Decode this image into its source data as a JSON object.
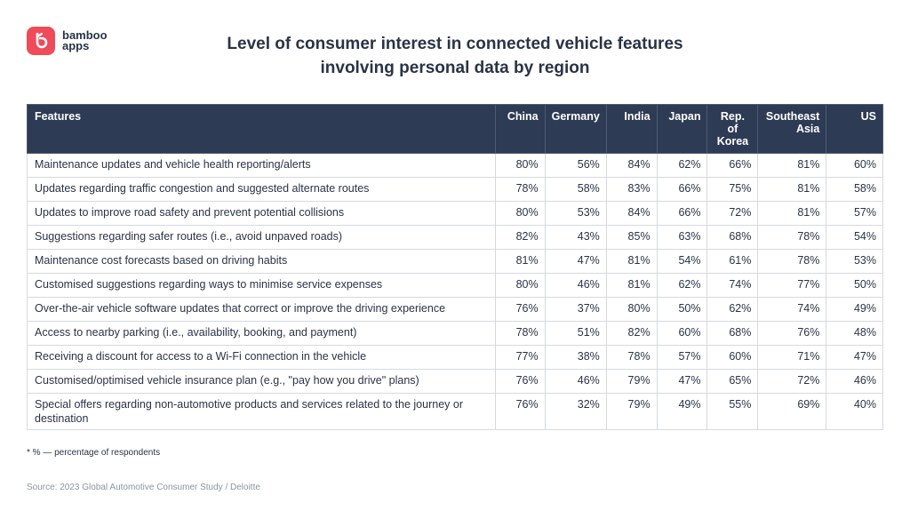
{
  "brand": {
    "name_line1": "bamboo",
    "name_line2": "apps",
    "accent": "#ef4b5a"
  },
  "title_line1": "Level of consumer interest in connected vehicle features",
  "title_line2": "involving personal data by region",
  "chart_data": {
    "type": "table",
    "title": "Level of consumer interest in connected vehicle features involving personal data by region",
    "columns": [
      "Features",
      "China",
      "Germany",
      "India",
      "Japan",
      "Rep. of Korea",
      "Southeast Asia",
      "US"
    ],
    "header_labels": {
      "features": "Features",
      "china": "China",
      "germany": "Germany",
      "india": "India",
      "japan": "Japan",
      "korea_l1": "Rep. of",
      "korea_l2": "Korea",
      "sea_l1": "Southeast",
      "sea_l2": "Asia",
      "us": "US"
    },
    "rows": [
      {
        "feature": "Maintenance updates and vehicle health reporting/alerts",
        "values": [
          "80%",
          "56%",
          "84%",
          "62%",
          "66%",
          "81%",
          "60%"
        ]
      },
      {
        "feature": "Updates regarding traffic congestion and suggested alternate routes",
        "values": [
          "78%",
          "58%",
          "83%",
          "66%",
          "75%",
          "81%",
          "58%"
        ]
      },
      {
        "feature": "Updates to improve road safety and prevent potential collisions",
        "values": [
          "80%",
          "53%",
          "84%",
          "66%",
          "72%",
          "81%",
          "57%"
        ]
      },
      {
        "feature": "Suggestions regarding safer routes (i.e., avoid unpaved roads)",
        "values": [
          "82%",
          "43%",
          "85%",
          "63%",
          "68%",
          "78%",
          "54%"
        ]
      },
      {
        "feature": "Maintenance cost forecasts based on driving habits",
        "values": [
          "81%",
          "47%",
          "81%",
          "54%",
          "61%",
          "78%",
          "53%"
        ]
      },
      {
        "feature": "Customised suggestions regarding ways to minimise service expenses",
        "values": [
          "80%",
          "46%",
          "81%",
          "62%",
          "74%",
          "77%",
          "50%"
        ]
      },
      {
        "feature": "Over-the-air vehicle software updates that correct or improve the driving experience",
        "values": [
          "76%",
          "37%",
          "80%",
          "50%",
          "62%",
          "74%",
          "49%"
        ]
      },
      {
        "feature": "Access to nearby parking (i.e., availability, booking, and payment)",
        "values": [
          "78%",
          "51%",
          "82%",
          "60%",
          "68%",
          "76%",
          "48%"
        ]
      },
      {
        "feature": "Receiving a discount for access to a Wi-Fi connection in the vehicle",
        "values": [
          "77%",
          "38%",
          "78%",
          "57%",
          "60%",
          "71%",
          "47%"
        ]
      },
      {
        "feature": "Customised/optimised vehicle insurance plan (e.g., \"pay how you drive\" plans)",
        "values": [
          "76%",
          "46%",
          "79%",
          "47%",
          "65%",
          "72%",
          "46%"
        ]
      },
      {
        "feature": "Special offers regarding non-automotive products and services related to the journey or destination",
        "values": [
          "76%",
          "32%",
          "79%",
          "49%",
          "55%",
          "69%",
          "40%"
        ]
      }
    ]
  },
  "footnote": "* % — percentage of respondents",
  "source": "Source: 2023 Global Automotive Consumer Study / Deloitte",
  "colors": {
    "header_bg": "#2e3b55",
    "text": "#2a3346",
    "source_text": "#8a93a6",
    "border": "#d6d9df"
  }
}
